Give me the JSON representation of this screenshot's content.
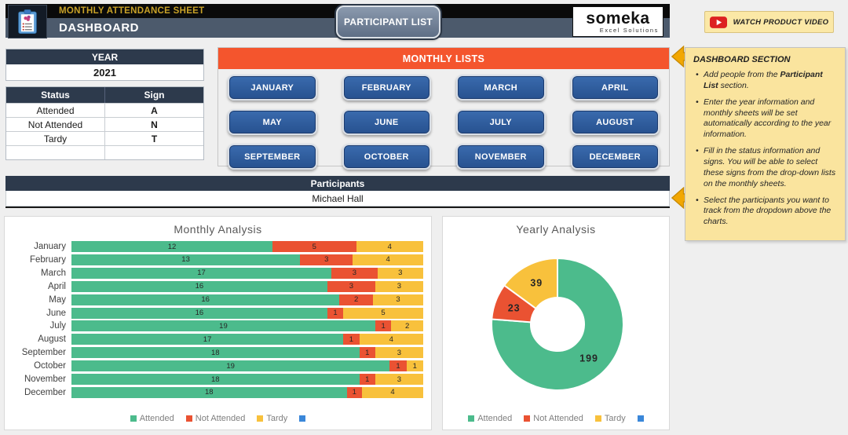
{
  "header": {
    "title": "MONTHLY ATTENDANCE SHEET",
    "subtitle": "DASHBOARD",
    "participant_list_button": "PARTICIPANT LIST",
    "logo": {
      "name": "someka",
      "tagline": "Excel Solutions"
    },
    "watch_video_button": "WATCH PRODUCT VIDEO"
  },
  "year_table": {
    "header": "YEAR",
    "value": "2021"
  },
  "status_table": {
    "headers": [
      "Status",
      "Sign"
    ],
    "rows": [
      [
        "Attended",
        "A"
      ],
      [
        "Not Attended",
        "N"
      ],
      [
        "Tardy",
        "T"
      ],
      [
        "",
        ""
      ]
    ]
  },
  "monthly_lists": {
    "title": "MONTHLY LISTS",
    "months": [
      "JANUARY",
      "FEBRUARY",
      "MARCH",
      "APRIL",
      "MAY",
      "JUNE",
      "JULY",
      "AUGUST",
      "SEPTEMBER",
      "OCTOBER",
      "NOVEMBER",
      "DECEMBER"
    ]
  },
  "participants": {
    "header": "Participants",
    "selected": "Michael Hall"
  },
  "notes": {
    "title": "DASHBOARD SECTION",
    "bullets": [
      {
        "pre": "Add people from the ",
        "bold": "Participant List",
        "post": " section."
      },
      {
        "pre": "Enter the year information and monthly sheets will be set automatically according to the year information.",
        "bold": "",
        "post": ""
      },
      {
        "pre": "Fill in the status information and signs. You will be able to select these signs from the drop-down lists on the monthly sheets.",
        "bold": "",
        "post": ""
      },
      {
        "pre": "Select the participants you want to track from the dropdown above the charts.",
        "bold": "",
        "post": ""
      }
    ]
  },
  "colors": {
    "attended": "#4CBB8C",
    "not_attended": "#EA5232",
    "tardy": "#F8C13C",
    "extra_series_blue": "#3A87D9",
    "orange_header": "#F4552D",
    "dark_slate": "#2D3A4C",
    "header_band": "#4C5A6C",
    "month_button_blue": "#2C5A9E",
    "note_yellow": "#FAE49E",
    "arrow_gold": "#F2A702"
  },
  "chart_data": [
    {
      "type": "bar",
      "orientation": "horizontal",
      "stacked": true,
      "normalized_per_row": true,
      "title": "Monthly Analysis",
      "categories": [
        "January",
        "February",
        "March",
        "April",
        "May",
        "June",
        "July",
        "August",
        "September",
        "October",
        "November",
        "December"
      ],
      "series": [
        {
          "name": "Attended",
          "color": "#4CBB8C",
          "values": [
            12,
            13,
            17,
            16,
            16,
            16,
            19,
            17,
            18,
            19,
            18,
            18
          ]
        },
        {
          "name": "Not Attended",
          "color": "#EA5232",
          "values": [
            5,
            3,
            3,
            3,
            2,
            1,
            1,
            1,
            1,
            1,
            1,
            1
          ]
        },
        {
          "name": "Tardy",
          "color": "#F8C13C",
          "values": [
            4,
            4,
            3,
            3,
            3,
            5,
            2,
            4,
            3,
            1,
            3,
            4
          ]
        }
      ],
      "legend": [
        {
          "label": "Attended",
          "color": "#4CBB8C"
        },
        {
          "label": "Not Attended",
          "color": "#EA5232"
        },
        {
          "label": "Tardy",
          "color": "#F8C13C"
        },
        {
          "label": "",
          "color": "#3A87D9"
        }
      ],
      "legend_position": "bottom",
      "grid": false
    },
    {
      "type": "pie",
      "subtype": "donut",
      "title": "Yearly Analysis",
      "labels": [
        "Attended",
        "Not Attended",
        "Tardy"
      ],
      "values": [
        199,
        23,
        39
      ],
      "colors": [
        "#4CBB8C",
        "#EA5232",
        "#F8C13C"
      ],
      "start_angle_deg": 0,
      "direction": "clockwise",
      "legend": [
        {
          "label": "Attended",
          "color": "#4CBB8C"
        },
        {
          "label": "Not Attended",
          "color": "#EA5232"
        },
        {
          "label": "Tardy",
          "color": "#F8C13C"
        },
        {
          "label": "",
          "color": "#3A87D9"
        }
      ],
      "legend_position": "bottom"
    }
  ]
}
